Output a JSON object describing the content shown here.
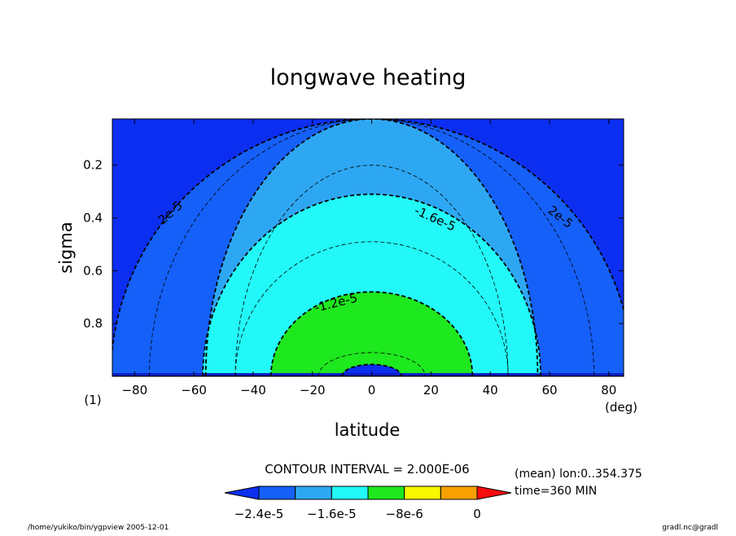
{
  "chart_data": {
    "type": "contour",
    "title": "longwave heating",
    "xlabel": "latitude",
    "ylabel": "sigma",
    "x_unit": "(deg)",
    "y_corner_label": "(1)",
    "xlim": [
      -87.5,
      85
    ],
    "ylim": [
      1.0,
      0.025
    ],
    "y_inverted": true,
    "xticks": [
      -80,
      -60,
      -40,
      -20,
      0,
      20,
      40,
      60,
      80
    ],
    "yticks": [
      0.2,
      0.4,
      0.6,
      0.8
    ],
    "contour_interval_text": "CONTOUR INTERVAL = 2.000E-06",
    "contour_labels": [
      "2e-5",
      "-1.6e-5",
      "-1.2e-5",
      "2e-5"
    ],
    "regions": [
      {
        "level": "< -2.4e-5",
        "color": "#0c2ef0",
        "max_lat": 85,
        "top_sigma": 0.025
      },
      {
        "level": "-2.4e-5 .. -2.0e-5",
        "color": "#1560f8",
        "max_lat": 88,
        "top_sigma": 0.025
      },
      {
        "level": "-2.0e-5 .. -1.6e-5",
        "color": "#2ea7f2",
        "max_lat": 56,
        "top_sigma": 0.025
      },
      {
        "level": "-1.6e-5 .. -1.2e-5",
        "color": "#22f8f8",
        "max_lat": 57,
        "top_sigma": 0.31
      },
      {
        "level": "-1.2e-5 .. -8e-6",
        "color": "#1ee81e",
        "max_lat": 34,
        "top_sigma": 0.68
      }
    ],
    "colorbar": {
      "colors": [
        "#0c2ef0",
        "#1560f8",
        "#2ea7f2",
        "#22f8f8",
        "#1ee81e",
        "#f8f800",
        "#f8a000",
        "#f80c0c"
      ],
      "tick_labels": [
        "-2.4e-5",
        "-1.6e-5",
        "-8e-6",
        "0"
      ]
    },
    "info_lines": [
      "(mean) lon:0..354.375",
      "time=360 MIN"
    ]
  },
  "footer": {
    "left": "/home/yukiko/bin/ygpview  2005-12-01",
    "right": "gradl.nc@gradl"
  }
}
